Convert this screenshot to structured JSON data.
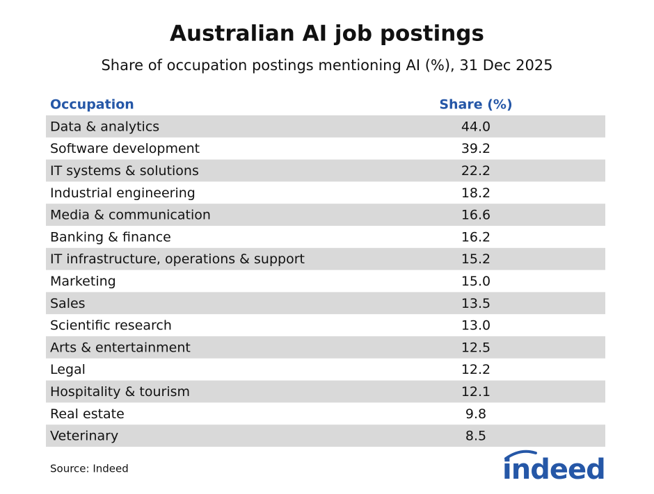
{
  "header": {
    "title": "Australian AI job postings",
    "subtitle": "Share of occupation postings mentioning AI (%), 31 Dec 2025"
  },
  "table": {
    "columns": [
      "Occupation",
      "Share (%)"
    ],
    "rows": [
      [
        "Data & analytics",
        "44.0"
      ],
      [
        "Software development",
        "39.2"
      ],
      [
        "IT systems & solutions",
        "22.2"
      ],
      [
        "Industrial engineering",
        "18.2"
      ],
      [
        "Media & communication",
        "16.6"
      ],
      [
        "Banking & finance",
        "16.2"
      ],
      [
        "IT infrastructure, operations & support",
        "15.2"
      ],
      [
        "Marketing",
        "15.0"
      ],
      [
        "Sales",
        "13.5"
      ],
      [
        "Scientific research",
        "13.0"
      ],
      [
        "Arts & entertainment",
        "12.5"
      ],
      [
        "Legal",
        "12.2"
      ],
      [
        "Hospitality & tourism",
        "12.1"
      ],
      [
        "Real estate",
        "9.8"
      ],
      [
        "Veterinary",
        "8.5"
      ]
    ]
  },
  "footer": {
    "source": "Source: Indeed",
    "logo": "indeed"
  }
}
